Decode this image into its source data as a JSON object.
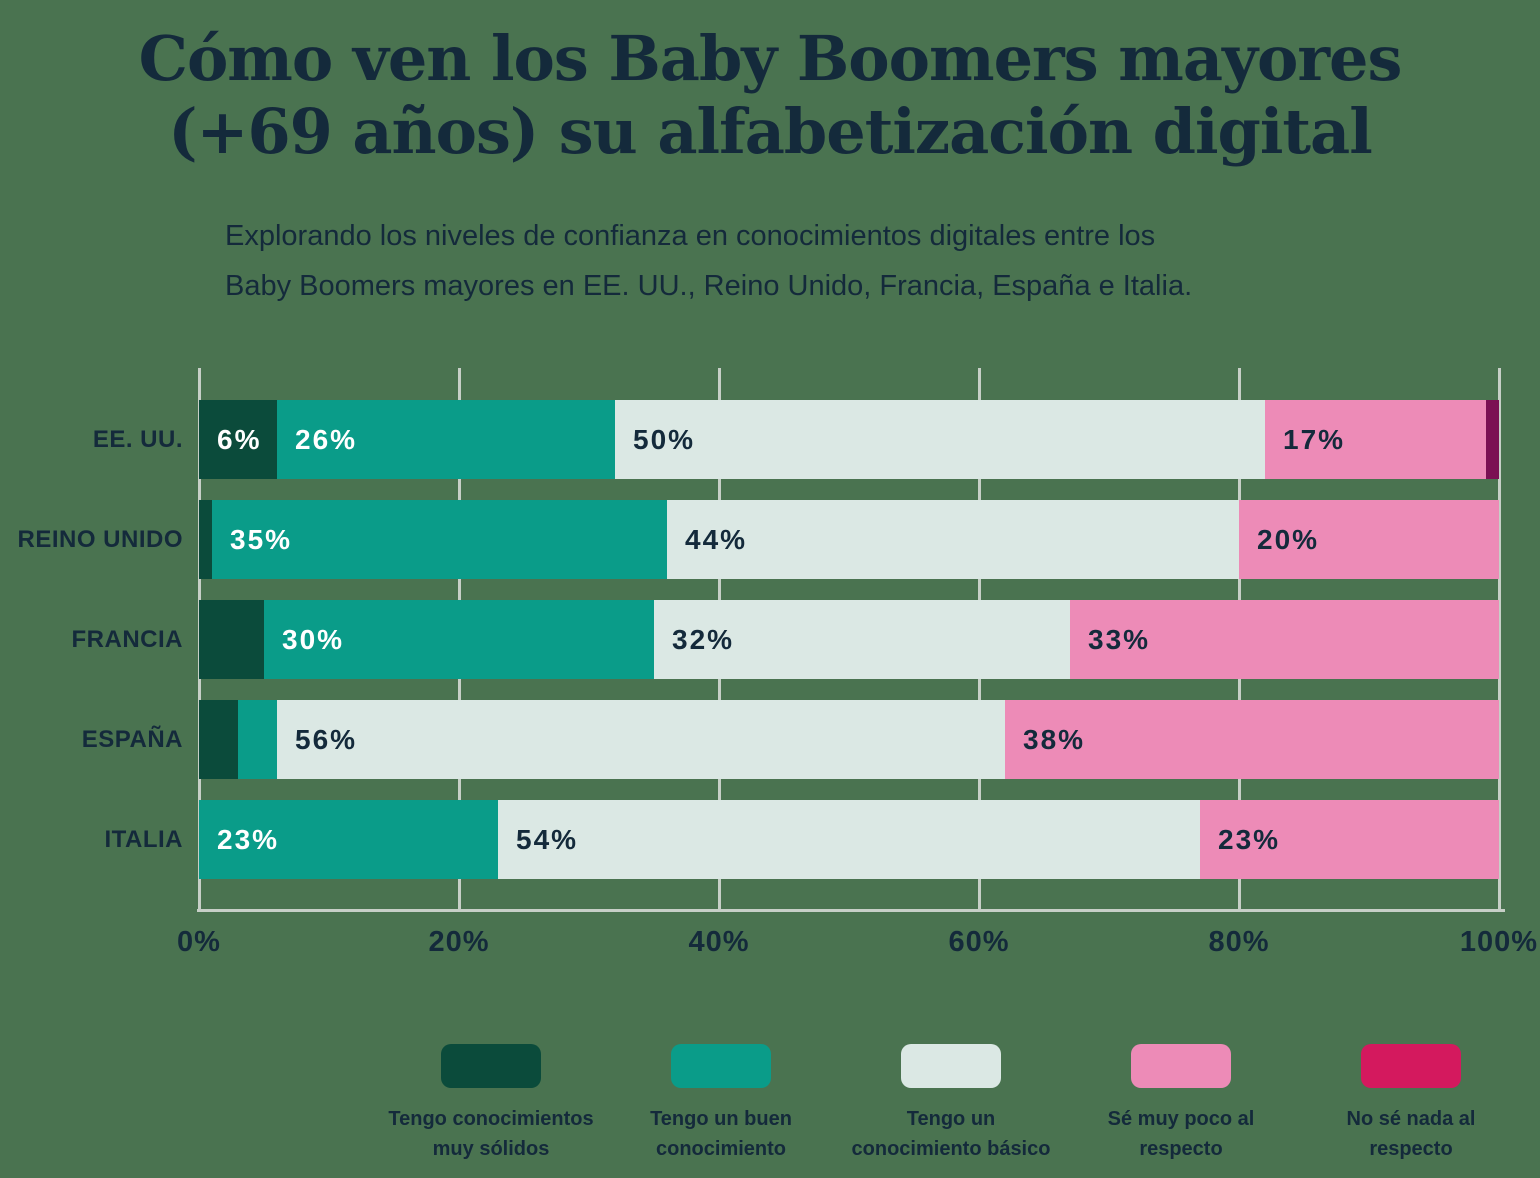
{
  "page": {
    "title": "Cómo ven los Baby Boomers mayores\n(+69 años) su alfabetización digital",
    "subtitle": "Explorando los niveles de confianza en conocimientos digitales entre los\nBaby Boomers mayores en EE. UU., Reino Unido, Francia, España e Italia."
  },
  "colors": {
    "background": "#4a7350",
    "text": "#142a3b",
    "grid": "#c7cfc7"
  },
  "chart_data": {
    "type": "bar",
    "orientation": "horizontal",
    "stacked": true,
    "title": "Cómo ven los Baby Boomers mayores (+69 años) su alfabetización digital",
    "subtitle": "Explorando los niveles de confianza en conocimientos digitales entre los Baby Boomers mayores en EE. UU., Reino Unido, Francia, España e Italia.",
    "categories": [
      "EE. UU.",
      "REINO UNIDO",
      "FRANCIA",
      "ESPAÑA",
      "ITALIA"
    ],
    "series": [
      {
        "name": "Tengo conocimientos muy sólidos",
        "color": "#0b4b3b",
        "text_color": "#ffffff",
        "values": [
          6,
          1,
          5,
          3,
          0
        ]
      },
      {
        "name": "Tengo un buen conocimiento",
        "color": "#0a9c89",
        "text_color": "#ffffff",
        "values": [
          26,
          35,
          30,
          3,
          23
        ]
      },
      {
        "name": "Tengo un conocimiento básico",
        "color": "#dbe8e4",
        "text_color": "#142a3b",
        "values": [
          50,
          44,
          32,
          56,
          54
        ]
      },
      {
        "name": "Sé muy poco al respecto",
        "color": "#ed8bb7",
        "text_color": "#142a3b",
        "values": [
          17,
          20,
          33,
          38,
          23
        ]
      },
      {
        "name": "No sé nada al respecto",
        "color": "#7b1053",
        "text_color": "#ffffff",
        "values": [
          1,
          0,
          0,
          0,
          0
        ]
      }
    ],
    "label_format": "{value}%",
    "min_label_value": 6,
    "x_ticks": [
      "0%",
      "20%",
      "40%",
      "60%",
      "80%",
      "100%"
    ],
    "xlim": [
      0,
      100
    ],
    "grid": true,
    "legend_position": "bottom",
    "legend": [
      {
        "label": "Tengo conocimientos\nmuy sólidos",
        "color": "#0b4b3b"
      },
      {
        "label": "Tengo un buen\nconocimiento",
        "color": "#0a9c89"
      },
      {
        "label": "Tengo un\nconocimiento básico",
        "color": "#dbe8e4"
      },
      {
        "label": "Sé muy poco al\nrespecto",
        "color": "#ed8bb7"
      },
      {
        "label": "No sé nada al\nrespecto",
        "color": "#d4195e"
      }
    ]
  }
}
